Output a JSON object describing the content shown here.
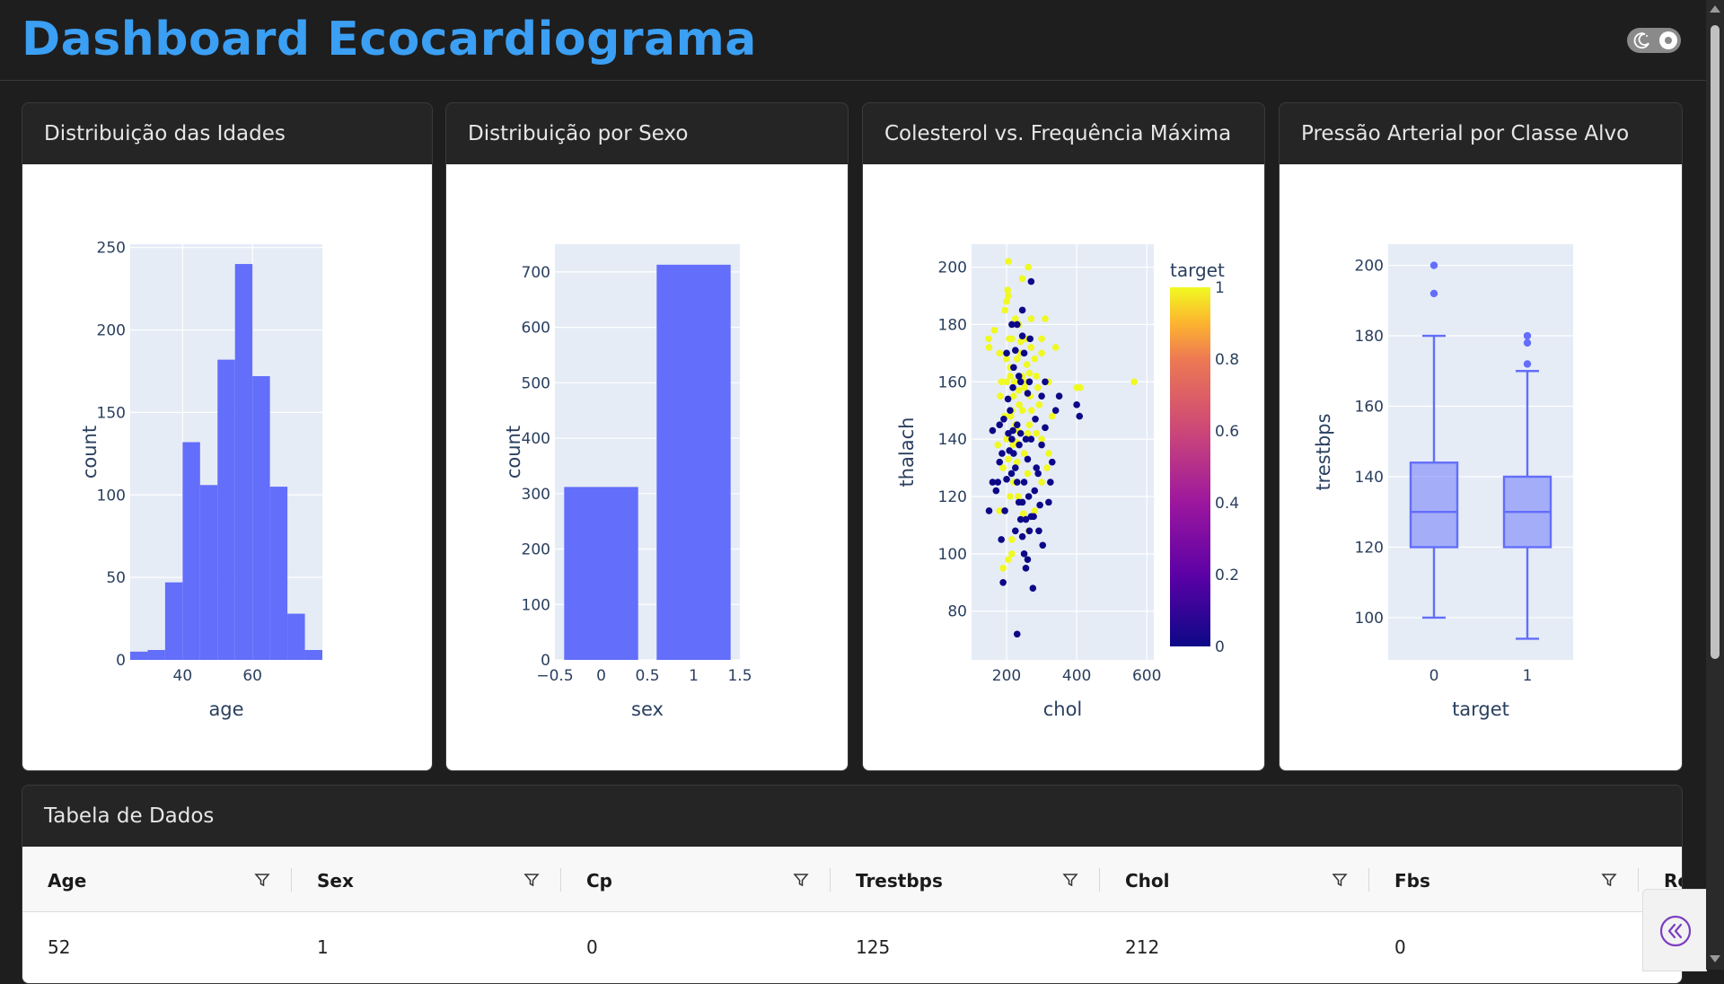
{
  "header": {
    "title": "Dashboard Ecocardiograma",
    "theme_toggle": "moon-icon"
  },
  "cards": {
    "age": "Distribuição das Idades",
    "sex": "Distribuição por Sexo",
    "scatter": "Colesterol vs. Frequência Máxima",
    "box": "Pressão Arterial por Classe Alvo"
  },
  "table": {
    "title": "Tabela de Dados",
    "columns": [
      "Age",
      "Sex",
      "Cp",
      "Trestbps",
      "Chol",
      "Fbs",
      "Re"
    ],
    "rows": [
      [
        "52",
        "1",
        "0",
        "125",
        "212",
        "0",
        ""
      ]
    ]
  },
  "colors": {
    "accent": "#3b9ff3",
    "bar": "#636efa",
    "plot_bg": "#e5ecf6"
  },
  "chart_data": [
    {
      "type": "bar",
      "title": "",
      "xlabel": "age",
      "ylabel": "count",
      "bin_edges": [
        25,
        30,
        35,
        40,
        45,
        50,
        55,
        60,
        65,
        70,
        75,
        80
      ],
      "values": [
        5,
        6,
        47,
        132,
        106,
        182,
        240,
        172,
        105,
        28,
        6
      ],
      "xticks": [
        "40",
        "60"
      ],
      "yticks": [
        "0",
        "50",
        "100",
        "150",
        "200",
        "250"
      ],
      "xlim": [
        25,
        80
      ],
      "ylim": [
        0,
        252
      ]
    },
    {
      "type": "bar",
      "title": "",
      "xlabel": "sex",
      "ylabel": "count",
      "categories": [
        "0",
        "1"
      ],
      "x": [
        0,
        1
      ],
      "values": [
        312,
        713
      ],
      "xticks": [
        "−0.5",
        "0",
        "0.5",
        "1",
        "1.5"
      ],
      "yticks": [
        "0",
        "100",
        "200",
        "300",
        "400",
        "500",
        "600",
        "700"
      ],
      "xlim": [
        -0.5,
        1.5
      ],
      "ylim": [
        0,
        750
      ]
    },
    {
      "type": "scatter",
      "title": "",
      "xlabel": "chol",
      "ylabel": "thalach",
      "xticks": [
        "200",
        "400",
        "600"
      ],
      "yticks": [
        "80",
        "100",
        "120",
        "140",
        "160",
        "180",
        "200"
      ],
      "xlim": [
        100,
        620
      ],
      "ylim": [
        63,
        208
      ],
      "colorbar": {
        "title": "target",
        "ticks": [
          "0",
          "0.2",
          "0.4",
          "0.6",
          "0.8",
          "1"
        ],
        "range": [
          0,
          1
        ]
      },
      "series": [
        {
          "values": [
            [
              149,
              175
            ],
            [
              150,
              172
            ],
            [
              165,
              178
            ],
            [
              180,
              170
            ],
            [
              195,
              185
            ],
            [
              200,
              160
            ],
            [
              205,
              190
            ],
            [
              215,
              150
            ],
            [
              225,
              182
            ],
            [
              240,
              174
            ],
            [
              255,
              160
            ],
            [
              270,
              172
            ],
            [
              285,
              162
            ],
            [
              300,
              170
            ],
            [
              320,
              160
            ],
            [
              330,
              148
            ],
            [
              340,
              172
            ],
            [
              200,
              140
            ],
            [
              190,
              130
            ],
            [
              210,
              120
            ],
            [
              175,
              138
            ],
            [
              215,
              100
            ],
            [
              260,
              142
            ],
            [
              270,
              182
            ],
            [
              280,
              168
            ],
            [
              293,
              152
            ],
            [
              300,
              140
            ],
            [
              310,
              182
            ],
            [
              230,
              168
            ],
            [
              220,
              155
            ],
            [
              245,
              150
            ],
            [
              250,
              135
            ],
            [
              265,
              145
            ],
            [
              210,
              162
            ],
            [
              195,
              148
            ],
            [
              232,
              143
            ],
            [
              260,
              128
            ],
            [
              300,
              175
            ],
            [
              235,
              180
            ],
            [
              215,
              175
            ],
            [
              205,
              202
            ],
            [
              400,
              158
            ],
            [
              410,
              158
            ],
            [
              564,
              160
            ],
            [
              182,
              155
            ],
            [
              240,
              170
            ],
            [
              200,
              188
            ],
            [
              190,
              95
            ],
            [
              210,
              165
            ],
            [
              220,
              125
            ],
            [
              280,
              115
            ],
            [
              320,
              135
            ],
            [
              225,
              145
            ],
            [
              255,
              175
            ],
            [
              265,
              163
            ],
            [
              235,
              157
            ],
            [
              285,
              142
            ],
            [
              300,
              125
            ],
            [
              180,
              115
            ],
            [
              185,
              160
            ],
            [
              245,
              196
            ],
            [
              262,
              200
            ],
            [
              215,
              105
            ],
            [
              203,
              192
            ],
            [
              230,
              132
            ],
            [
              315,
              130
            ],
            [
              208,
              175
            ],
            [
              222,
              160
            ],
            [
              236,
              152
            ],
            [
              251,
              158
            ],
            [
              219,
              138
            ],
            [
              199,
              168
            ],
            [
              267,
              155
            ],
            [
              244,
              162
            ],
            [
              227,
              139
            ],
            [
              212,
              148
            ],
            [
              258,
              166
            ],
            [
              289,
              158
            ],
            [
              271,
              150
            ],
            [
              205,
              133
            ],
            [
              233,
              120
            ],
            [
              248,
              114
            ],
            [
              263,
              108
            ],
            [
              205,
              98
            ]
          ],
          "target": 1,
          "color": "#f0f921"
        },
        {
          "values": [
            [
              150,
              115
            ],
            [
              160,
              125
            ],
            [
              170,
              122
            ],
            [
              180,
              132
            ],
            [
              185,
              105
            ],
            [
              190,
              90
            ],
            [
              200,
              126
            ],
            [
              205,
              142
            ],
            [
              210,
              150
            ],
            [
              215,
              140
            ],
            [
              220,
              135
            ],
            [
              225,
              130
            ],
            [
              230,
              125
            ],
            [
              235,
              118
            ],
            [
              240,
              112
            ],
            [
              245,
              106
            ],
            [
              250,
              100
            ],
            [
              255,
              95
            ],
            [
              260,
              98
            ],
            [
              265,
              108
            ],
            [
              270,
              113
            ],
            [
              275,
              88
            ],
            [
              280,
              122
            ],
            [
              290,
              128
            ],
            [
              300,
              138
            ],
            [
              310,
              144
            ],
            [
              320,
              118
            ],
            [
              330,
              132
            ],
            [
              340,
              150
            ],
            [
              350,
              155
            ],
            [
              230,
              72
            ],
            [
              400,
              152
            ],
            [
              408,
              148
            ],
            [
              270,
              195
            ],
            [
              260,
              156
            ],
            [
              240,
              160
            ],
            [
              220,
              165
            ],
            [
              230,
              180
            ],
            [
              245,
              185
            ],
            [
              200,
              170
            ],
            [
              180,
              145
            ],
            [
              175,
              125
            ],
            [
              160,
              143
            ],
            [
              195,
              115
            ],
            [
              255,
              140
            ],
            [
              282,
              147
            ],
            [
              300,
              155
            ],
            [
              310,
              160
            ],
            [
              325,
              125
            ],
            [
              265,
              160
            ],
            [
              250,
              170
            ],
            [
              235,
              162
            ],
            [
              225,
              171
            ],
            [
              215,
              180
            ],
            [
              285,
              130
            ],
            [
              295,
              117
            ],
            [
              270,
              140
            ],
            [
              250,
              125
            ],
            [
              240,
              142
            ],
            [
              230,
              145
            ],
            [
              218,
              158
            ],
            [
              204,
              154
            ],
            [
              192,
              147
            ],
            [
              187,
              135
            ],
            [
              263,
              120
            ],
            [
              277,
              113
            ],
            [
              292,
              108
            ],
            [
              303,
              103
            ],
            [
              255,
              112
            ],
            [
              245,
              118
            ],
            [
              236,
              138
            ],
            [
              260,
              133
            ],
            [
              225,
              108
            ],
            [
              214,
              128
            ],
            [
              267,
              175
            ],
            [
              245,
              176
            ],
            [
              218,
              143
            ],
            [
              208,
              136
            ]
          ],
          "target": 0,
          "color": "#0d0887"
        }
      ]
    },
    {
      "type": "box",
      "title": "",
      "xlabel": "target",
      "ylabel": "trestbps",
      "categories": [
        "0",
        "1"
      ],
      "yticks": [
        "100",
        "120",
        "140",
        "160",
        "180",
        "200"
      ],
      "ylim": [
        88,
        206
      ],
      "series": [
        {
          "name": "0",
          "min": 100,
          "q1": 120,
          "median": 130,
          "q3": 144,
          "max": 180,
          "outliers": [
            192,
            200
          ]
        },
        {
          "name": "1",
          "min": 94,
          "q1": 120,
          "median": 130,
          "q3": 140,
          "max": 170,
          "outliers": [
            172,
            178,
            180
          ]
        }
      ]
    }
  ]
}
